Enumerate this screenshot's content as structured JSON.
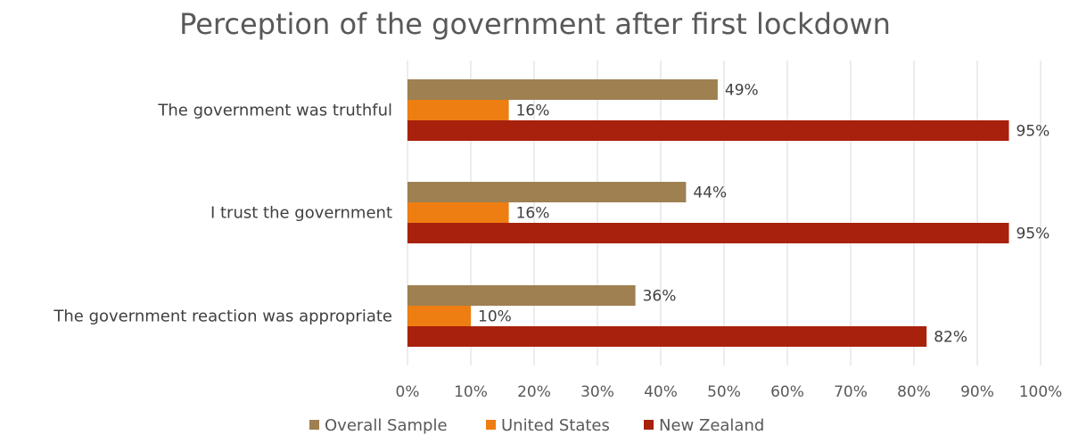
{
  "chart_data": {
    "type": "bar",
    "orientation": "horizontal",
    "title": "Perception of the government after first lockdown",
    "categories": [
      "The government was truthful",
      "I trust the government",
      "The government reaction was appropriate"
    ],
    "series": [
      {
        "name": "Overall Sample",
        "color": "#9e8051",
        "values": [
          49,
          44,
          36
        ],
        "labels": [
          "49%",
          "44%",
          "36%"
        ]
      },
      {
        "name": "United States",
        "color": "#ee7d12",
        "values": [
          16,
          16,
          10
        ],
        "labels": [
          "16%",
          "16%",
          "10%"
        ]
      },
      {
        "name": "New Zealand",
        "color": "#a8210c",
        "values": [
          95,
          95,
          82
        ],
        "labels": [
          "95%",
          "95%",
          "82%"
        ]
      }
    ],
    "xlim": [
      0,
      100
    ],
    "x_ticks": [
      "0%",
      "10%",
      "20%",
      "30%",
      "40%",
      "50%",
      "60%",
      "70%",
      "80%",
      "90%",
      "100%"
    ],
    "grid": true,
    "legend_position": "bottom"
  }
}
